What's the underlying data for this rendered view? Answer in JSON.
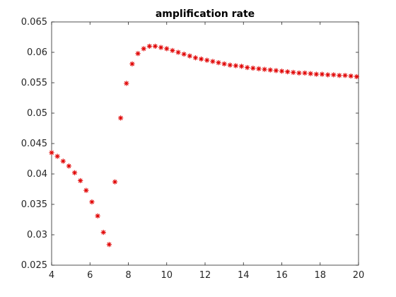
{
  "chart_data": {
    "type": "scatter",
    "title": "amplification rate",
    "xlabel": "",
    "ylabel": "",
    "xlim": [
      4,
      20
    ],
    "ylim": [
      0.025,
      0.065
    ],
    "xticks": [
      4,
      6,
      8,
      10,
      12,
      14,
      16,
      18,
      20
    ],
    "xtick_labels": [
      "4",
      "6",
      "8",
      "10",
      "12",
      "14",
      "16",
      "18",
      "20"
    ],
    "yticks": [
      0.025,
      0.03,
      0.035,
      0.04,
      0.045,
      0.05,
      0.055,
      0.06,
      0.065
    ],
    "ytick_labels": [
      "0.025",
      "0.03",
      "0.035",
      "0.04",
      "0.045",
      "0.05",
      "0.055",
      "0.06",
      "0.065"
    ],
    "grid": false,
    "marker_color": "#e00000",
    "series": [
      {
        "marker": "asterisk",
        "x": [
          4.0,
          4.3,
          4.6,
          4.9,
          5.2,
          5.5,
          5.8,
          6.1,
          6.4,
          6.7,
          7.0,
          7.3,
          7.6,
          7.9,
          8.2,
          8.5,
          8.8,
          9.1,
          9.4,
          9.7,
          10.0,
          10.3,
          10.6,
          10.9,
          11.2,
          11.5,
          11.8,
          12.1,
          12.4,
          12.7,
          13.0,
          13.3,
          13.6,
          13.9,
          14.2,
          14.5,
          14.8,
          15.1,
          15.4,
          15.7,
          16.0,
          16.3,
          16.6,
          16.9,
          17.2,
          17.5,
          17.8,
          18.1,
          18.4,
          18.7,
          19.0,
          19.3,
          19.6,
          19.9
        ],
        "y": [
          0.0435,
          0.0429,
          0.0421,
          0.0413,
          0.0402,
          0.0389,
          0.0373,
          0.0354,
          0.0331,
          0.0304,
          0.0284,
          0.0387,
          0.0492,
          0.0549,
          0.0581,
          0.0598,
          0.0606,
          0.061,
          0.061,
          0.0608,
          0.0606,
          0.0603,
          0.06,
          0.0597,
          0.0594,
          0.0591,
          0.0589,
          0.0587,
          0.0585,
          0.0583,
          0.0581,
          0.0579,
          0.0578,
          0.0577,
          0.0575,
          0.0574,
          0.0573,
          0.0572,
          0.0571,
          0.057,
          0.0569,
          0.0568,
          0.0567,
          0.0566,
          0.0566,
          0.0565,
          0.0564,
          0.0564,
          0.0563,
          0.0563,
          0.0562,
          0.0562,
          0.0561,
          0.056
        ]
      }
    ]
  }
}
